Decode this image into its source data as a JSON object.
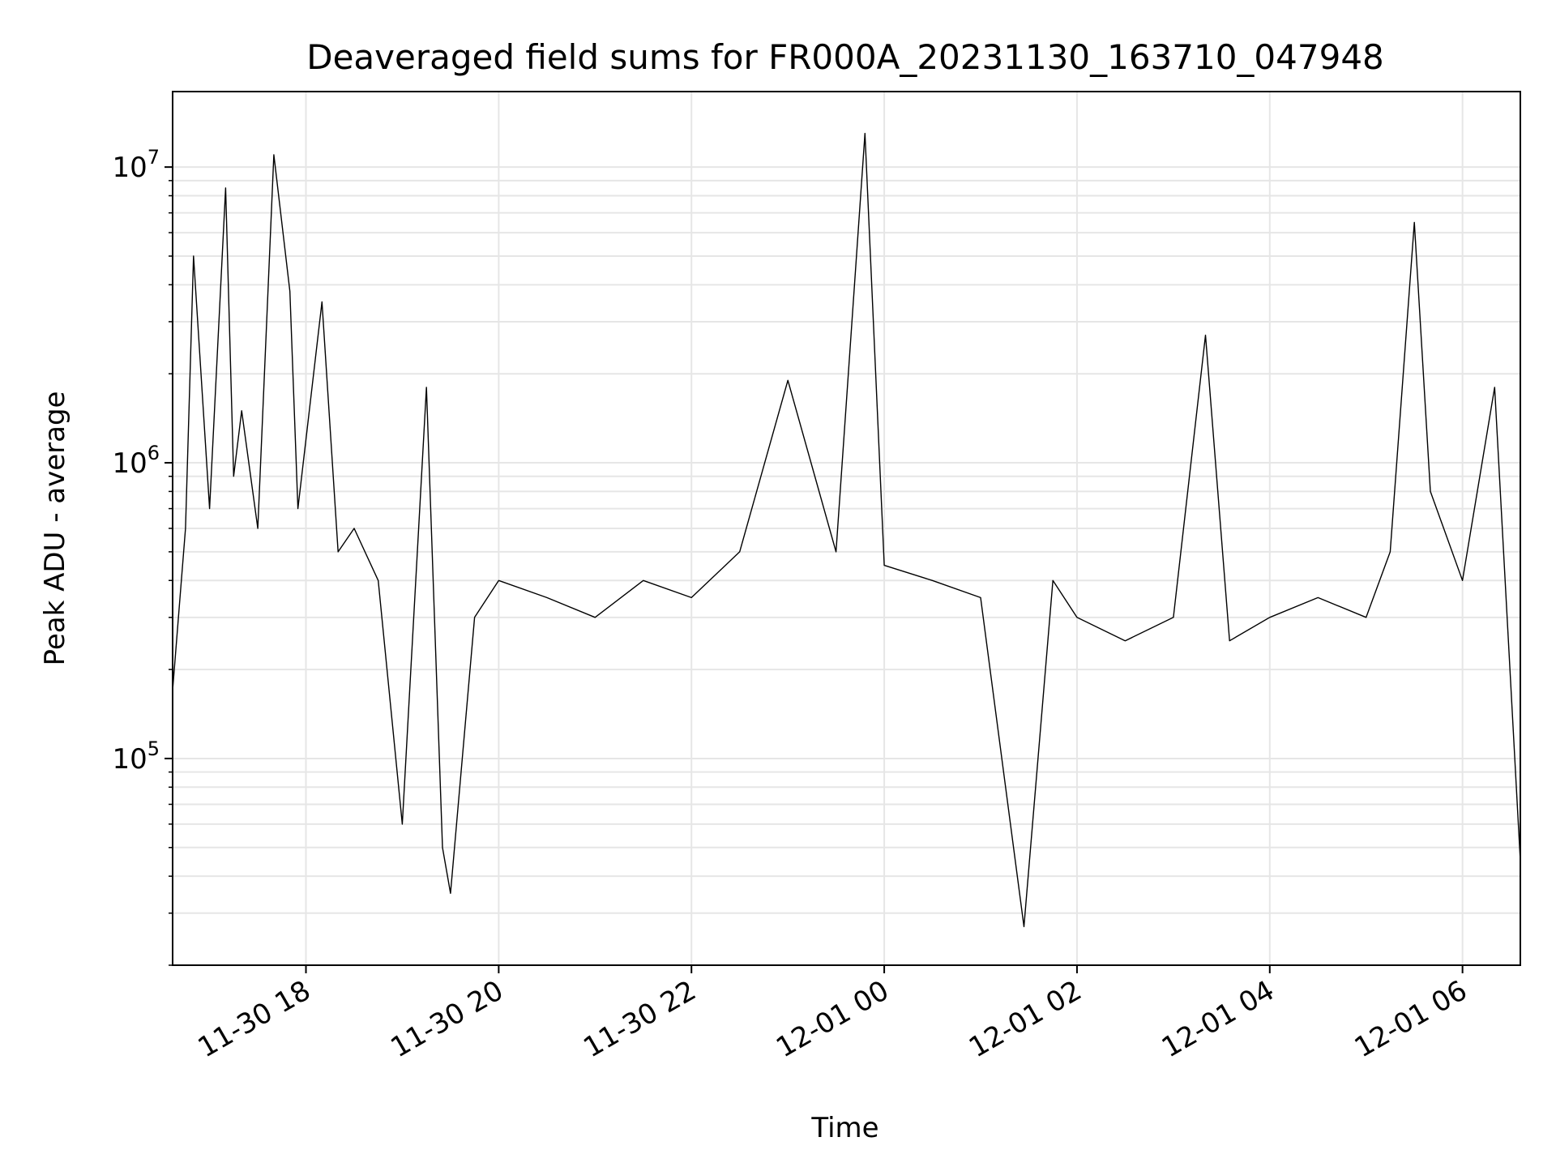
{
  "chart_data": {
    "type": "line",
    "title": "Deaveraged field sums for FR000A_20231130_163710_047948",
    "xlabel": "Time",
    "ylabel": "Peak ADU - average",
    "yscale": "log",
    "xlim": [
      "2023-11-30 16:37",
      "2023-12-01 06:36"
    ],
    "ylim": [
      20000,
      18000000
    ],
    "grid": true,
    "line_color": "#000000",
    "grid_color": "#e6e6e6",
    "x_ticks": [
      {
        "value": "2023-11-30 18:00",
        "label": "11-30 18"
      },
      {
        "value": "2023-11-30 20:00",
        "label": "11-30 20"
      },
      {
        "value": "2023-11-30 22:00",
        "label": "11-30 22"
      },
      {
        "value": "2023-12-01 00:00",
        "label": "12-01 00"
      },
      {
        "value": "2023-12-01 02:00",
        "label": "12-01 02"
      },
      {
        "value": "2023-12-01 04:00",
        "label": "12-01 04"
      },
      {
        "value": "2023-12-01 06:00",
        "label": "12-01 06"
      }
    ],
    "y_ticks": [
      {
        "value": 100000,
        "base": "10",
        "exp": "5"
      },
      {
        "value": 1000000,
        "base": "10",
        "exp": "6"
      },
      {
        "value": 10000000,
        "base": "10",
        "exp": "7"
      }
    ],
    "series": [
      {
        "x": [
          "2023-11-30 16:37",
          "2023-11-30 16:45",
          "2023-11-30 16:50",
          "2023-11-30 17:00",
          "2023-11-30 17:10",
          "2023-11-30 17:15",
          "2023-11-30 17:20",
          "2023-11-30 17:30",
          "2023-11-30 17:40",
          "2023-11-30 17:50",
          "2023-11-30 17:55",
          "2023-11-30 18:10",
          "2023-11-30 18:20",
          "2023-11-30 18:30",
          "2023-11-30 18:45",
          "2023-11-30 19:00",
          "2023-11-30 19:15",
          "2023-11-30 19:25",
          "2023-11-30 19:30",
          "2023-11-30 19:45",
          "2023-11-30 20:00",
          "2023-11-30 20:30",
          "2023-11-30 21:00",
          "2023-11-30 21:30",
          "2023-11-30 22:00",
          "2023-11-30 22:30",
          "2023-11-30 23:00",
          "2023-11-30 23:30",
          "2023-11-30 23:48",
          "2023-12-01 00:00",
          "2023-12-01 00:30",
          "2023-12-01 01:00",
          "2023-12-01 01:27",
          "2023-12-01 01:45",
          "2023-12-01 02:00",
          "2023-12-01 02:30",
          "2023-12-01 03:00",
          "2023-12-01 03:20",
          "2023-12-01 03:35",
          "2023-12-01 04:00",
          "2023-12-01 04:30",
          "2023-12-01 05:00",
          "2023-12-01 05:15",
          "2023-12-01 05:30",
          "2023-12-01 05:40",
          "2023-12-01 06:00",
          "2023-12-01 06:20",
          "2023-12-01 06:36"
        ],
        "y": [
          170000,
          600000,
          5000000,
          700000,
          8500000,
          900000,
          1500000,
          600000,
          11000000,
          3800000,
          700000,
          3500000,
          500000,
          600000,
          400000,
          60000,
          1800000,
          50000,
          35000,
          300000,
          400000,
          350000,
          300000,
          400000,
          350000,
          500000,
          1900000,
          500000,
          13000000,
          450000,
          400000,
          350000,
          27000,
          400000,
          300000,
          250000,
          300000,
          2700000,
          250000,
          300000,
          350000,
          300000,
          500000,
          6500000,
          800000,
          400000,
          1800000,
          45000
        ]
      }
    ]
  }
}
